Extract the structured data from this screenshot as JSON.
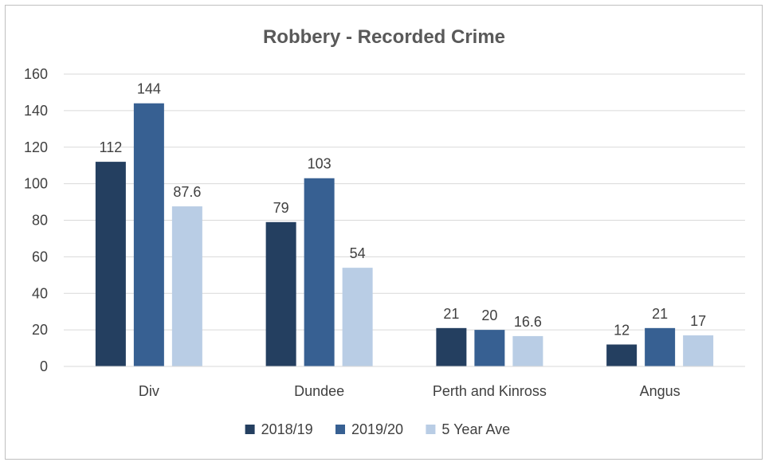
{
  "chart_data": {
    "type": "bar",
    "title": "Robbery - Recorded Crime",
    "categories": [
      "Div",
      "Dundee",
      "Perth and Kinross",
      "Angus"
    ],
    "series": [
      {
        "name": "2018/19",
        "color": "#243f60",
        "values": [
          112,
          79,
          21,
          12
        ],
        "labels": [
          "112",
          "79",
          "21",
          "12"
        ]
      },
      {
        "name": "2019/20",
        "color": "#376092",
        "values": [
          144,
          103,
          20,
          21
        ],
        "labels": [
          "144",
          "103",
          "20",
          "21"
        ]
      },
      {
        "name": "5 Year Ave",
        "color": "#b9cde5",
        "values": [
          87.6,
          54,
          16.6,
          17
        ],
        "labels": [
          "87.6",
          "54",
          "16.6",
          "17"
        ]
      }
    ],
    "ylim": [
      0,
      160
    ],
    "yticks": [
      0,
      20,
      40,
      60,
      80,
      100,
      120,
      140,
      160
    ],
    "grid": true,
    "legend_position": "bottom"
  }
}
